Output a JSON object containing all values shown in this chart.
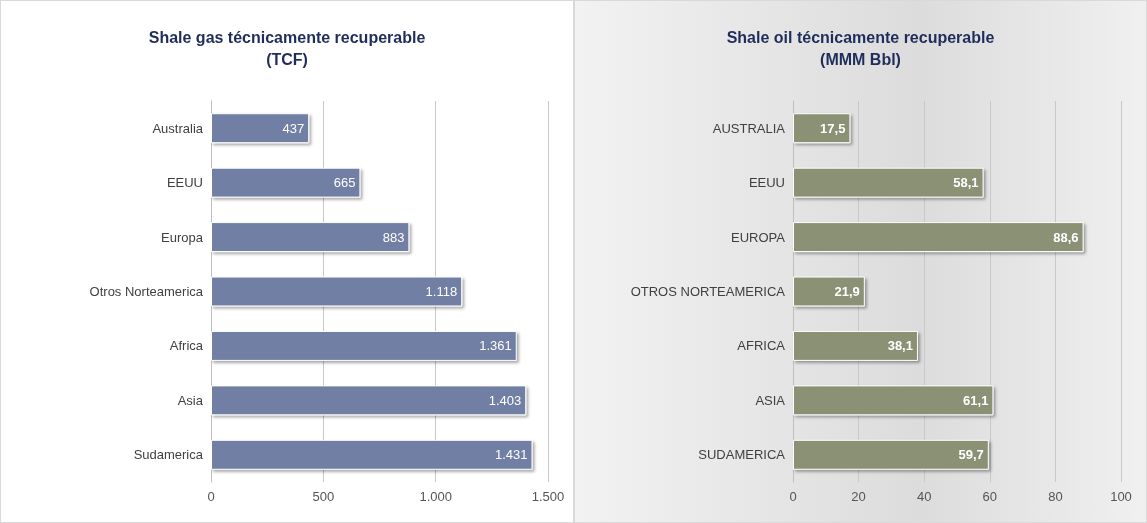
{
  "chart_data": [
    {
      "type": "bar",
      "orientation": "horizontal",
      "title": "Shale gas técnicamente recuperable\n(TCF)",
      "categories": [
        "Australia",
        "EEUU",
        "Europa",
        "Otros Norteamerica",
        "Africa",
        "Asia",
        "Sudamerica"
      ],
      "values": [
        437,
        665,
        883,
        1118,
        1361,
        1403,
        1431
      ],
      "color": "#6f7fa3",
      "value_labels": [
        "437",
        "665",
        "883",
        "1.118",
        "1.361",
        "1.403",
        "1.431"
      ],
      "xlim": [
        0,
        1500
      ],
      "xticks": [
        0,
        500,
        {
          "value": 1000,
          "label": "1.000"
        },
        {
          "value": 1500,
          "label": "1.500"
        }
      ],
      "grid": "x"
    },
    {
      "type": "bar",
      "orientation": "horizontal",
      "title": "Shale oil técnicamente recuperable\n(MMM Bbl)",
      "categories": [
        "AUSTRALIA",
        "EEUU",
        "EUROPA",
        "OTROS NORTEAMERICA",
        "AFRICA",
        "ASIA",
        "SUDAMERICA"
      ],
      "values": [
        17.5,
        58.1,
        88.6,
        21.9,
        38.1,
        61.1,
        59.7
      ],
      "color": "#8b9175",
      "value_labels": [
        "17,5",
        "58,1",
        "88,6",
        "21,9",
        "38,1",
        "61,1",
        "59,7"
      ],
      "xlim": [
        0,
        100
      ],
      "xticks": [
        0,
        20,
        40,
        60,
        80,
        100
      ],
      "grid": "x"
    }
  ]
}
